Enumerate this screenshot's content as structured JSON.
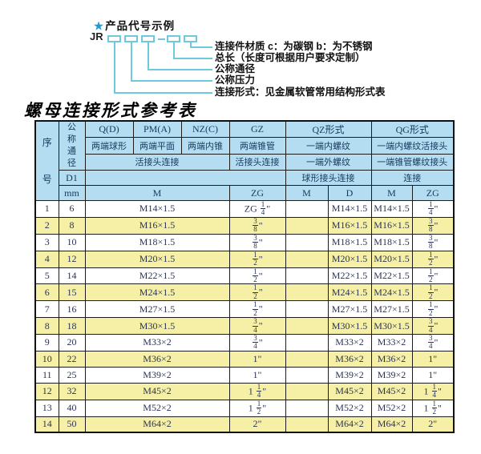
{
  "diagram": {
    "star": "★",
    "heading": "产品代号示例",
    "code_prefix": "JR",
    "labels": [
      "连接件材质  c：为碳钢  b：为不锈钢",
      "总长（长度可根据用户要求定制）",
      "公称通径",
      "公称压力",
      "连接形式：见金属软管常用结构形式表"
    ]
  },
  "table_title": "螺母连接形式参考表",
  "table": {
    "corner": {
      "seq": "序号",
      "dn": "公称通径",
      "d1": "D1",
      "unit": "mm"
    },
    "groups": [
      {
        "code": "Q(D)",
        "type": "两端球形"
      },
      {
        "code": "PM(A)",
        "type": "两端平面"
      },
      {
        "code": "NZ(C)",
        "type": "两端内锥"
      },
      {
        "code": "GZ",
        "type": "两端锥管"
      },
      {
        "code": "QZ形式",
        "type": "一端内螺纹"
      },
      {
        "code": "QG形式",
        "type": "一端内螺纹活接头"
      }
    ],
    "row3": {
      "left": "活接头连接",
      "gz": "活接头连接",
      "qz": "一端外螺纹",
      "qg": "一端锥管螺纹接头"
    },
    "row4": {
      "qz": "球形接头连接",
      "qg": "连接"
    },
    "units": {
      "m": "M",
      "zg": "ZG",
      "qz_m": "M",
      "qz_d": "D",
      "qg_m": "M",
      "qg_zg": "ZG"
    },
    "rows": [
      [
        "1",
        "6",
        "M14×1.5",
        "ZG 1/4\"",
        "",
        "M14×1.5",
        "M14×1.5",
        "1/4\""
      ],
      [
        "2",
        "8",
        "M16×1.5",
        "3/8\"",
        "",
        "M16×1.5",
        "M16×1.5",
        "3/8\""
      ],
      [
        "3",
        "10",
        "M18×1.5",
        "3/8\"",
        "",
        "M18×1.5",
        "M18×1.5",
        "3/8\""
      ],
      [
        "4",
        "12",
        "M20×1.5",
        "1/2\"",
        "",
        "M20×1.5",
        "M20×1.5",
        "1/2\""
      ],
      [
        "5",
        "14",
        "M22×1.5",
        "1/2\"",
        "",
        "M22×1.5",
        "M22×1.5",
        "1/2\""
      ],
      [
        "6",
        "15",
        "M24×1.5",
        "1/2\"",
        "",
        "M24×1.5",
        "M24×1.5",
        "1/2\""
      ],
      [
        "7",
        "16",
        "M27×1.5",
        "1/2\"",
        "",
        "M27×1.5",
        "M27×1.5",
        "1/2\""
      ],
      [
        "8",
        "18",
        "M30×1.5",
        "3/4\"",
        "",
        "M30×1.5",
        "M30×1.5",
        "3/4\""
      ],
      [
        "9",
        "20",
        "M33×2",
        "3/4\"",
        "",
        "M33×2",
        "M33×2",
        "3/4\""
      ],
      [
        "10",
        "22",
        "M36×2",
        "1\"",
        "",
        "M36×2",
        "M36×2",
        "1\""
      ],
      [
        "11",
        "25",
        "M39×2",
        "1\"",
        "",
        "M39×2",
        "M39×2",
        "1\""
      ],
      [
        "12",
        "32",
        "M45×2",
        "1 1/4\"",
        "",
        "M45×2",
        "M45×2",
        "1 1/4\""
      ],
      [
        "13",
        "40",
        "M52×2",
        "1 1/2\"",
        "",
        "M52×2",
        "M52×2",
        "1 1/2\""
      ],
      [
        "14",
        "50",
        "M64×2",
        "2\"",
        "",
        "M64×2",
        "M64×2",
        "2\""
      ]
    ]
  },
  "colors": {
    "accent_cyan": "#6ec9de",
    "star_blue": "#1e9ad6",
    "header_bg": "#b4ddf2",
    "header_text": "#17395c",
    "row_alt_bg": "#f5f0a6",
    "border": "#1c1c1c"
  }
}
